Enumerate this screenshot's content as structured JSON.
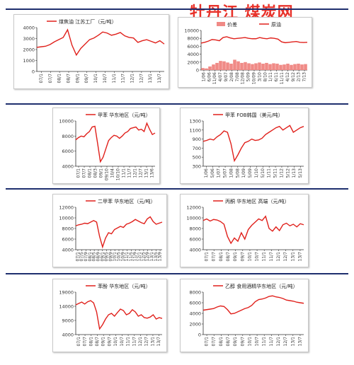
{
  "hero_text": "牡丹江 煤炭网",
  "colors": {
    "line": "#e0201b",
    "bar": "#f08a86",
    "rule": "#1f2f6e",
    "axis": "#333333"
  },
  "chart_data": [
    {
      "type": "line",
      "legend": "煤焦油 江苏工厂（元/吨）",
      "ylim": [
        0,
        4000
      ],
      "yticks": [
        "4000",
        "3000",
        "2000",
        "1000",
        "0"
      ],
      "xticks": [
        "07/1",
        "07/7",
        "08/1",
        "08/7",
        "09/1",
        "09/7",
        "10/1",
        "10/7",
        "11/1",
        "11/7",
        "12/1",
        "12/7",
        "13/1",
        "13/7"
      ],
      "series": [
        {
          "name": "煤焦油 江苏工厂（元/吨）",
          "values": [
            2200,
            2250,
            2300,
            2450,
            2700,
            2900,
            3100,
            3800,
            2400,
            1500,
            2100,
            2500,
            2900,
            3050,
            3300,
            3600,
            3500,
            3300,
            3400,
            3550,
            3250,
            3100,
            3050,
            2650,
            2800,
            2900,
            2750,
            2600,
            2800,
            2500
          ]
        }
      ]
    },
    {
      "type": "line",
      "legend": [
        "价差",
        "原油"
      ],
      "ylim": [
        0,
        10000
      ],
      "yticks": [
        "10000",
        "8000",
        "6000",
        "4000",
        "2000",
        "0"
      ],
      "xticks": [
        "1/06",
        "6/06",
        "11/06",
        "4/07",
        "9/07",
        "2/08",
        "7/08",
        "12/08",
        "5/09",
        "10/09",
        "3/10",
        "8/10",
        "1/11",
        "6/11",
        "11/11",
        "4/12",
        "9/12",
        "2/13",
        "7/13"
      ],
      "series": [
        {
          "name": "价差",
          "values": [
            500,
            400,
            900,
            1400,
            1800,
            2300,
            2200,
            1900,
            1600,
            2600,
            2200,
            1800,
            2000,
            1700,
            1500,
            1700,
            1900,
            1600,
            1800,
            1500,
            1700,
            1600,
            1300,
            1400,
            1600,
            1300,
            1500,
            1600,
            1400,
            1500
          ]
        },
        {
          "name": "原油",
          "values": [
            6800,
            7000,
            7300,
            7700,
            7600,
            7400,
            8200,
            8400,
            8100,
            7900,
            8000,
            8100,
            8200,
            8000,
            7900,
            7900,
            8200,
            8000,
            7900,
            8100,
            8000,
            7800,
            7100,
            6900,
            7000,
            7100,
            7200,
            7000,
            6950,
            7000
          ]
        }
      ]
    },
    {
      "type": "line",
      "legend": "甲苯 华东地区（元/吨）",
      "ylim": [
        4000,
        10000
      ],
      "yticks": [
        "10000",
        "8000",
        "6000",
        "4000"
      ],
      "xticks": [
        "07/1",
        "07/7",
        "08/1",
        "08/3",
        "09/1",
        "09/10",
        "10/4",
        "10/10",
        "11/1",
        "11/7",
        "12/1",
        "12/7",
        "13/1",
        "13/6"
      ],
      "series": [
        {
          "name": "甲苯 华东地区（元/吨）",
          "values": [
            7500,
            7800,
            8000,
            7900,
            8300,
            8600,
            9200,
            9300,
            7000,
            4600,
            5200,
            6300,
            7400,
            7800,
            8100,
            8000,
            7700,
            8000,
            8400,
            8600,
            9000,
            9100,
            9200,
            8800,
            8900,
            8600,
            9700,
            8900,
            8200,
            8400
          ]
        }
      ]
    },
    {
      "type": "line",
      "legend": "甲苯 FOB韩国（美元/吨）",
      "ylim": [
        300,
        1300
      ],
      "yticks": [
        "1300",
        "1100",
        "900",
        "700",
        "500",
        "300"
      ],
      "xticks": [
        "1/06",
        "5/06",
        "1/07",
        "5/07",
        "1/08",
        "5/08",
        "1/09",
        "5/09",
        "1/10",
        "5/10",
        "1/11",
        "5/11",
        "1/12",
        "5/12",
        "1/13",
        "5/13"
      ],
      "series": [
        {
          "name": "甲苯 FOB韩国（美元/吨）",
          "values": [
            850,
            870,
            900,
            880,
            950,
            1000,
            1080,
            1050,
            800,
            420,
            550,
            700,
            820,
            850,
            900,
            870,
            880,
            920,
            1000,
            1050,
            1100,
            1150,
            1180,
            1100,
            1150,
            1200,
            1050,
            1100,
            1150,
            1180
          ]
        }
      ]
    },
    {
      "type": "line",
      "legend": "二甲苯 华东地区（元/吨）",
      "ylim": [
        4000,
        12000
      ],
      "yticks": [
        "12000",
        "10000",
        "8000",
        "6000",
        "4000"
      ],
      "xticks": [
        "07/1",
        "07/5",
        "07/9",
        "08/1",
        "08/5",
        "08/9",
        "09/1",
        "09/5",
        "09/9",
        "10/1",
        "10/5",
        "10/9",
        "11/1",
        "11/5",
        "11/9",
        "12/1",
        "12/5",
        "12/9",
        "13/1",
        "13/5",
        "13/9"
      ],
      "series": [
        {
          "name": "二甲苯 华东地区（元/吨）",
          "values": [
            8500,
            8700,
            8800,
            9000,
            8900,
            9200,
            9500,
            9200,
            6500,
            4500,
            6200,
            7200,
            7000,
            7800,
            8100,
            8400,
            8200,
            8800,
            9000,
            9300,
            9700,
            9400,
            9100,
            8900,
            9800,
            10200,
            9300,
            8800,
            9000,
            9200
          ]
        }
      ]
    },
    {
      "type": "line",
      "legend": "丙酮 华东地区 高端（元/吨）",
      "ylim": [
        4000,
        12000
      ],
      "yticks": [
        "12000",
        "10000",
        "8000",
        "6000",
        "4000"
      ],
      "xticks": [
        "07/1",
        "07/7",
        "08/1",
        "08/7",
        "09/1",
        "09/7",
        "10/1",
        "10/7",
        "11/1",
        "11/7",
        "12/1",
        "12/7",
        "13/1",
        "13/7"
      ],
      "series": [
        {
          "name": "丙酮 华东地区 高端（元/吨）",
          "values": [
            9500,
            9800,
            9400,
            9700,
            9600,
            9300,
            8800,
            6500,
            5200,
            6200,
            5600,
            7200,
            6000,
            7800,
            8600,
            9200,
            9800,
            9500,
            10300,
            8000,
            7500,
            8300,
            7600,
            8700,
            9000,
            8500,
            8800,
            8300,
            8900,
            8700
          ]
        }
      ]
    },
    {
      "type": "line",
      "legend": "苯酚 华东地区（元/吨）",
      "ylim": [
        4000,
        19000
      ],
      "yticks": [
        "19000",
        "14000",
        "9000",
        "4000"
      ],
      "xticks": [
        "07/1",
        "07/7",
        "08/1",
        "08/7",
        "09/1",
        "09/7",
        "10/1",
        "10/7",
        "11/1",
        "11/7",
        "12/1",
        "12/7",
        "13/1",
        "13/7"
      ],
      "series": [
        {
          "name": "苯酚 华东地区（元/吨）",
          "values": [
            14500,
            15000,
            15500,
            14800,
            15600,
            16000,
            15200,
            12000,
            6000,
            7500,
            9500,
            11000,
            11500,
            10500,
            11800,
            13000,
            12500,
            11000,
            11500,
            12800,
            12000,
            10500,
            11000,
            10000,
            9800,
            10200,
            11000,
            9500,
            10000,
            9700
          ]
        }
      ]
    },
    {
      "type": "line",
      "legend": "乙醇 食用酒精华东地区（元/吨）",
      "ylim": [
        0,
        8000
      ],
      "yticks": [
        "8000",
        "6000",
        "4000",
        "2000",
        "0"
      ],
      "xticks": [
        "07/1",
        "07/7",
        "08/1",
        "08/7",
        "09/1",
        "09/7",
        "10/1",
        "10/7",
        "11/1",
        "11/7",
        "12/1",
        "12/7",
        "13/1",
        "13/7"
      ],
      "series": [
        {
          "name": "乙醇 食用酒精华东地区（元/吨）",
          "values": [
            4600,
            4700,
            4800,
            4900,
            5200,
            5400,
            5300,
            4700,
            3900,
            4000,
            4300,
            4600,
            4900,
            5100,
            5500,
            6200,
            6600,
            6700,
            6900,
            7200,
            7300,
            7100,
            7000,
            6800,
            6500,
            6400,
            6300,
            6100,
            6000,
            5900
          ]
        }
      ]
    }
  ]
}
